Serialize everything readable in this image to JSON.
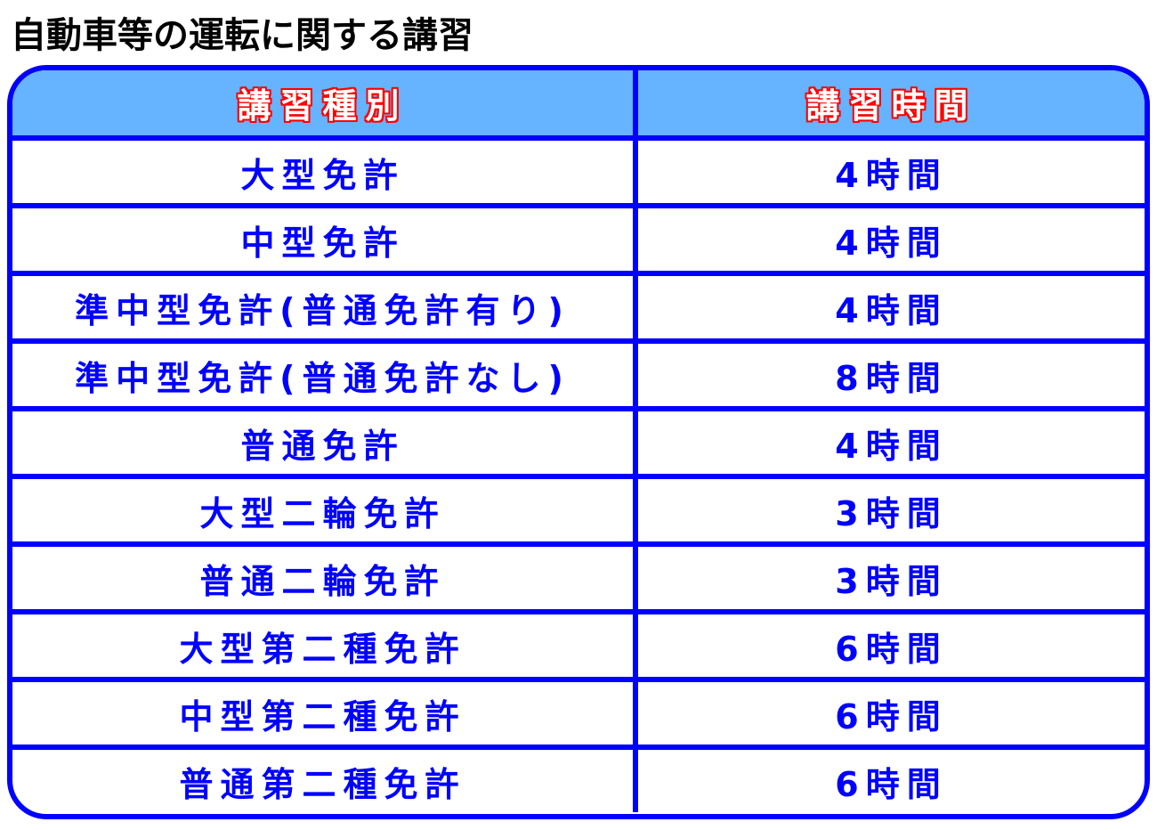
{
  "title": "自動車等の運転に関する講習",
  "colors": {
    "border": "#0000ff",
    "header_bg": "#66b3ff",
    "header_text": "#ffffff",
    "header_outline": "#ff0000",
    "cell_text": "#0000ff"
  },
  "table": {
    "headers": [
      "講習種別",
      "講習時間"
    ],
    "rows": [
      [
        "大型免許",
        "4時間"
      ],
      [
        "中型免許",
        "4時間"
      ],
      [
        "準中型免許(普通免許有り)",
        "4時間"
      ],
      [
        "準中型免許(普通免許なし)",
        "8時間"
      ],
      [
        "普通免許",
        "4時間"
      ],
      [
        "大型二輪免許",
        "3時間"
      ],
      [
        "普通二輪免許",
        "3時間"
      ],
      [
        "大型第二種免許",
        "6時間"
      ],
      [
        "中型第二種免許",
        "6時間"
      ],
      [
        "普通第二種免許",
        "6時間"
      ]
    ]
  }
}
